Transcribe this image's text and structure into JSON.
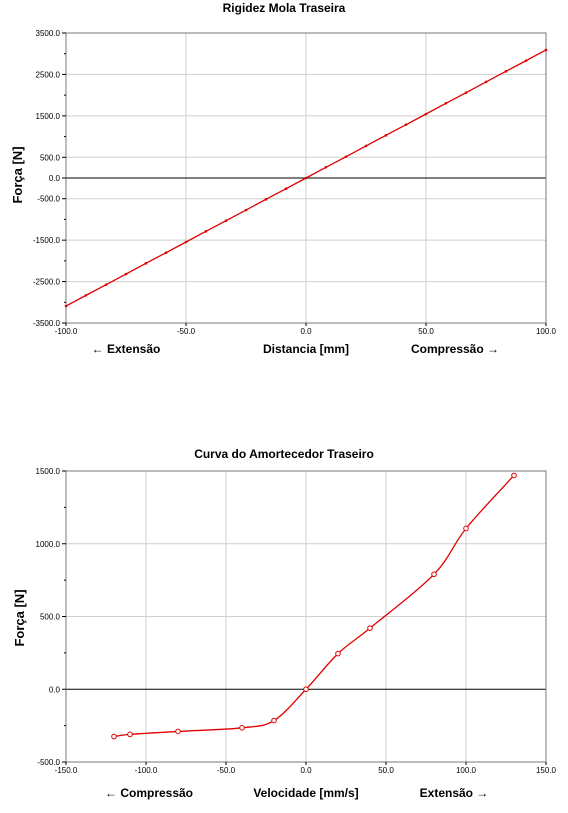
{
  "chart_data": [
    {
      "type": "line",
      "title": "Rigidez Mola Traseira",
      "ylabel": "Força [N]",
      "xlabel": "Distancia [mm]",
      "direction_left": "← Extensão",
      "direction_right": "Compressão →",
      "xlim": [
        -100,
        100
      ],
      "ylim": [
        -3500,
        3500
      ],
      "x_ticks": [
        -100,
        -50,
        0,
        50,
        100
      ],
      "x_tick_labels": [
        "-100.0",
        "-50.0",
        "0.0",
        "50.0",
        "100.0"
      ],
      "y_ticks": [
        3500,
        2500,
        1500,
        500,
        0,
        -500,
        -1500,
        -2500,
        -3500
      ],
      "y_tick_labels": [
        "3500.0",
        "2500.0",
        "1500.0",
        "500.0",
        "0.0",
        "-500.0",
        "-1500.0",
        "-2500.0",
        "-3500.0"
      ],
      "grid_x": [
        -50,
        0,
        50
      ],
      "grid_y": [
        2500,
        1500,
        500,
        -500,
        -1500,
        -2500
      ],
      "minor_y_ticks": [
        3000,
        2000,
        1000,
        -1000,
        -2000,
        -3000
      ],
      "zero_line": true,
      "series_color": "#e00000",
      "series": [
        {
          "x": [
            -100,
            -91.7,
            -83.3,
            -75,
            -66.7,
            -58.3,
            -50,
            -41.7,
            -33.3,
            -25,
            -16.7,
            -8.3,
            0,
            8.3,
            16.7,
            25,
            33.3,
            41.7,
            50,
            58.3,
            66.7,
            75,
            83.3,
            91.7,
            100
          ],
          "y": [
            -3090,
            -2833,
            -2575,
            -2318,
            -2060,
            -1803,
            -1545,
            -1288,
            -1030,
            -773,
            -515,
            -258,
            0,
            258,
            515,
            773,
            1030,
            1288,
            1545,
            1803,
            2060,
            2318,
            2575,
            2833,
            3090
          ]
        }
      ]
    },
    {
      "type": "line",
      "title": "Curva do Amortecedor Traseiro",
      "ylabel": "Força [N]",
      "xlabel": "Velocidade [mm/s]",
      "direction_left": "← Compressão",
      "direction_right": "Extensão →",
      "xlim": [
        -150,
        150
      ],
      "ylim": [
        -500,
        1500
      ],
      "x_ticks": [
        -150,
        -100,
        -50,
        0,
        50,
        100,
        150
      ],
      "x_tick_labels": [
        "-150.0",
        "-100.0",
        "-50.0",
        "0.0",
        "50.0",
        "100.0",
        "150.0"
      ],
      "y_ticks": [
        1500,
        1000,
        500,
        0,
        -500
      ],
      "y_tick_labels": [
        "1500.0",
        "1000.0",
        "500.0",
        "0.0",
        "-500.0"
      ],
      "grid_x": [
        -100,
        -50,
        0,
        50,
        100
      ],
      "grid_y": [
        1000,
        500
      ],
      "minor_y_ticks": [
        1250,
        750,
        250,
        -250
      ],
      "zero_line": true,
      "series_color": "#e00000",
      "series": [
        {
          "x": [
            -120,
            -110,
            -80,
            -40,
            -20,
            0,
            20,
            40,
            80,
            100,
            130
          ],
          "y": [
            -325,
            -310,
            -290,
            -265,
            -215,
            0,
            245,
            420,
            790,
            1105,
            1470
          ]
        }
      ]
    }
  ]
}
